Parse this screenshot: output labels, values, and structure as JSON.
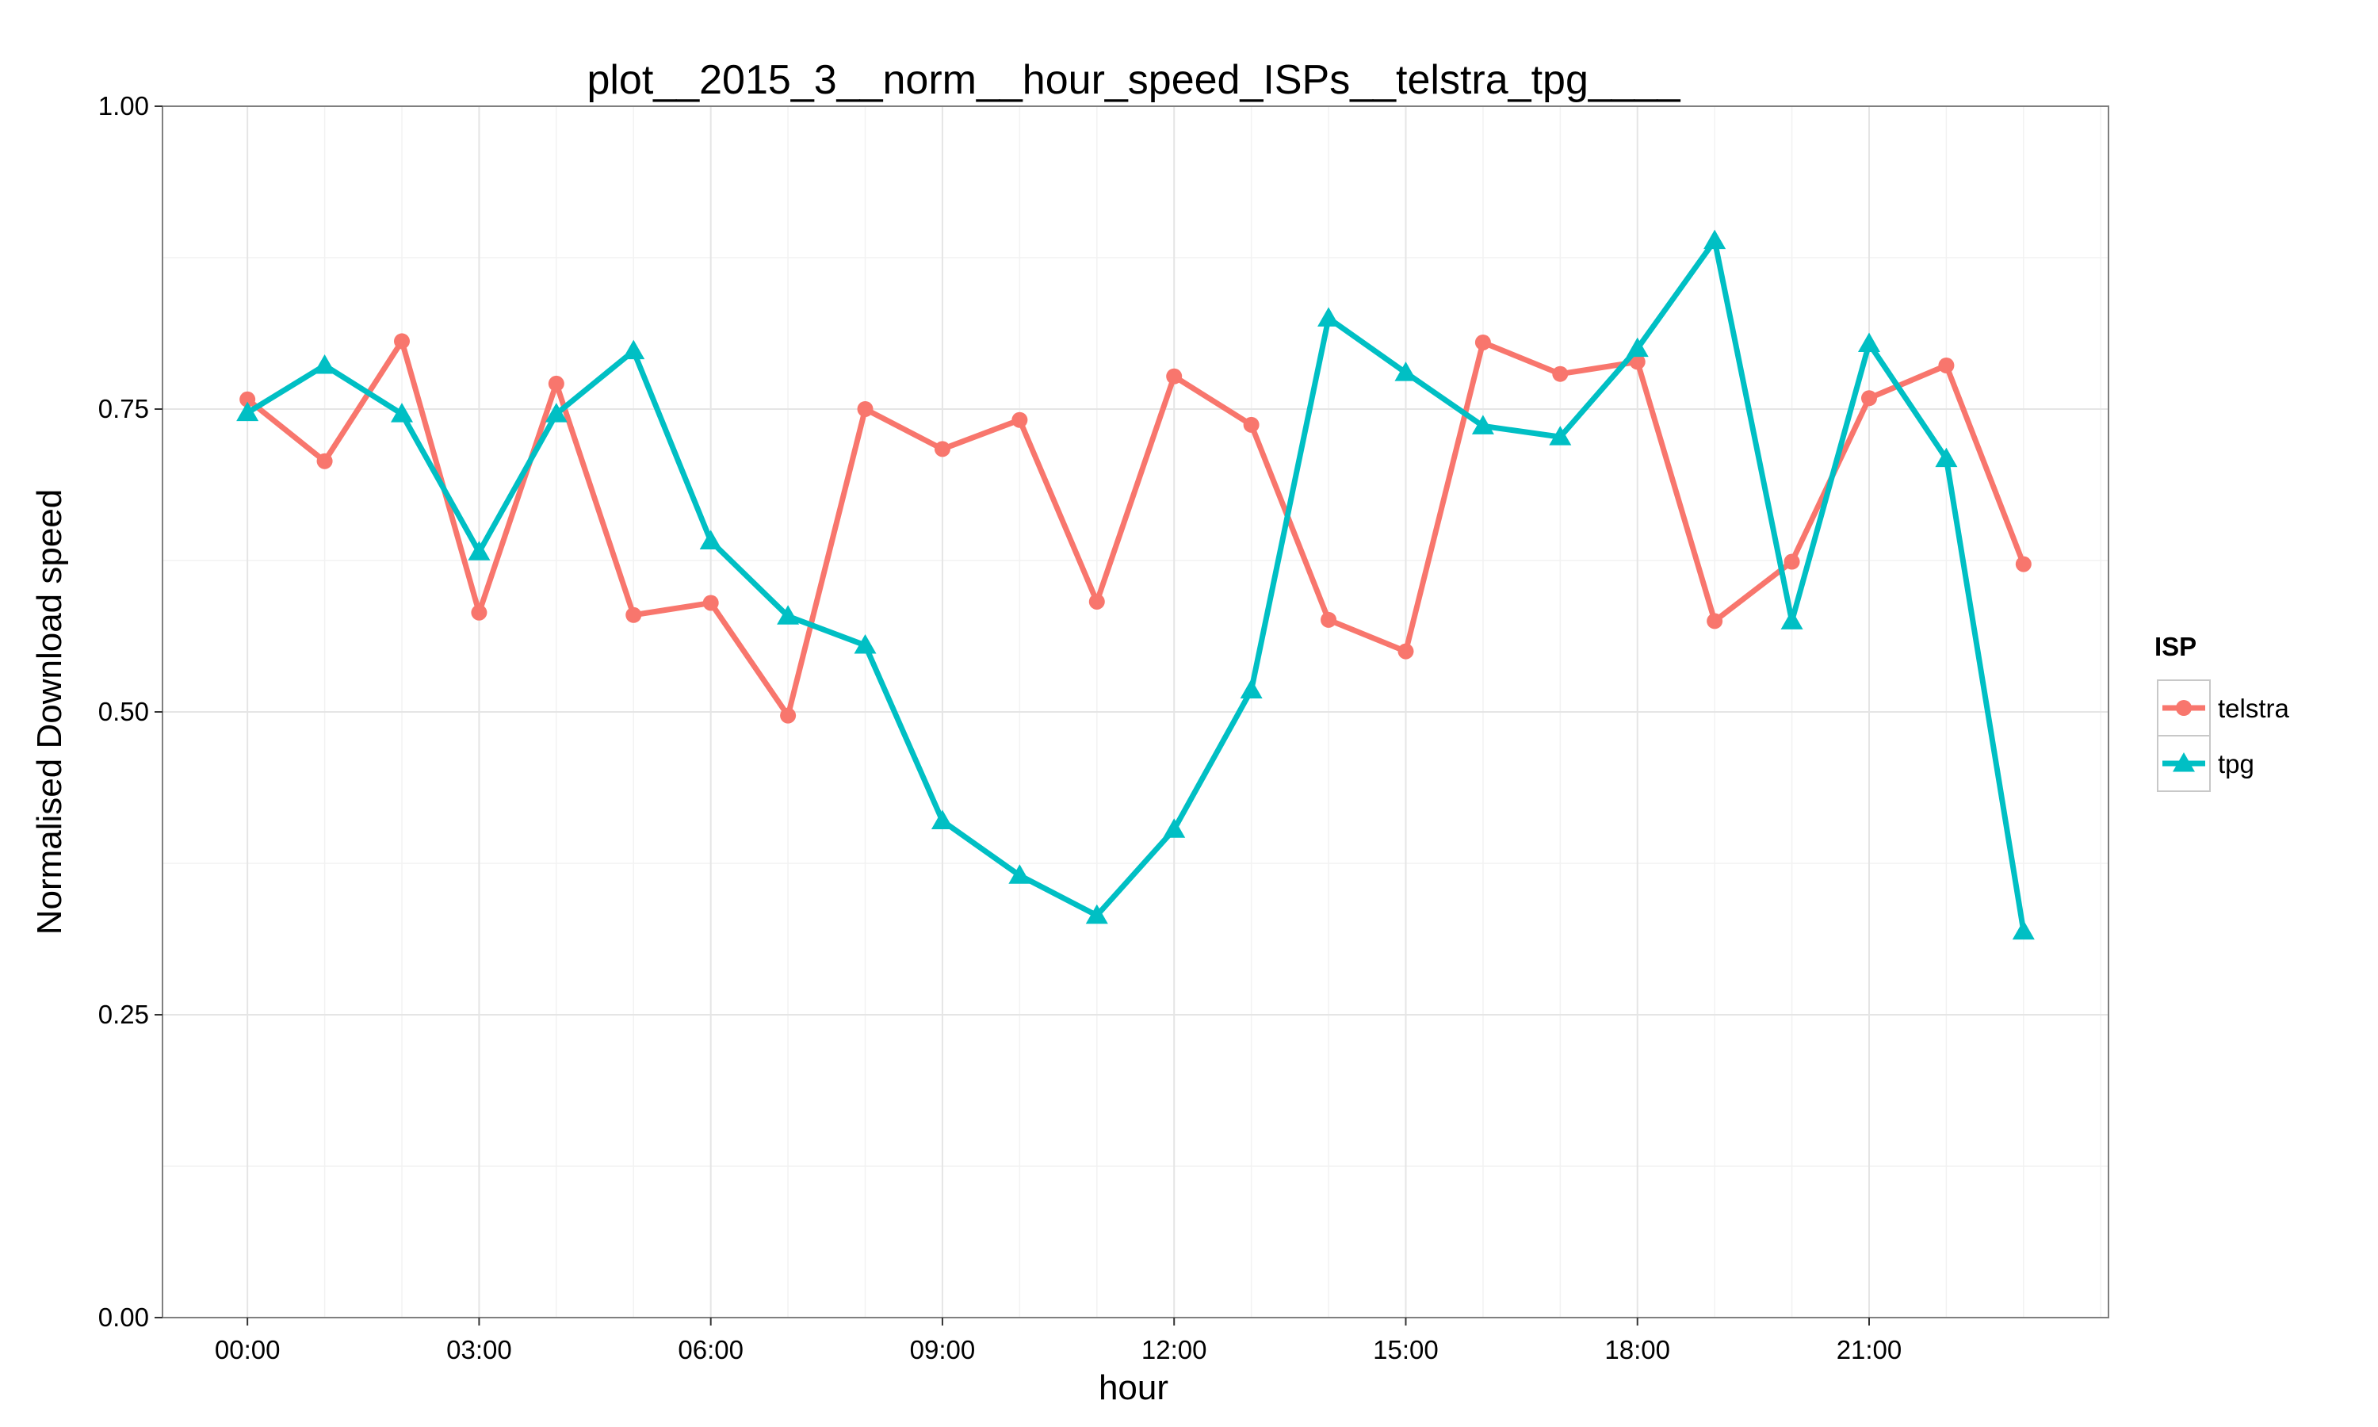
{
  "chart_data": {
    "type": "line",
    "title": "plot__2015_3__norm__hour_speed_ISPs__telstra_tpg____",
    "xlabel": "hour",
    "ylabel": "Normalised Download speed",
    "x": [
      0,
      1,
      2,
      3,
      4,
      5,
      6,
      7,
      8,
      9,
      10,
      11,
      12,
      13,
      14,
      15,
      16,
      17,
      18,
      19,
      20,
      21,
      22,
      23
    ],
    "xlim": [
      -1.1,
      24.1
    ],
    "ylim": [
      0,
      1
    ],
    "x_ticks": [
      0,
      3,
      6,
      9,
      12,
      15,
      18,
      21
    ],
    "x_tick_labels": [
      "00:00",
      "03:00",
      "06:00",
      "09:00",
      "12:00",
      "15:00",
      "18:00",
      "21:00"
    ],
    "y_ticks": [
      0,
      0.25,
      0.5,
      0.75,
      1.0
    ],
    "y_tick_labels": [
      "0.00",
      "0.25",
      "0.50",
      "0.75",
      "1.00"
    ],
    "grid": true,
    "legend": {
      "title": "ISP",
      "position": "right"
    },
    "series": [
      {
        "name": "telstra",
        "color": "#F8766D",
        "marker": "circle",
        "values": [
          0.758,
          0.707,
          0.806,
          0.582,
          0.771,
          0.58,
          0.59,
          0.497,
          0.75,
          0.717,
          0.741,
          0.591,
          0.777,
          0.737,
          0.576,
          0.55,
          0.805,
          0.779,
          0.789,
          0.575,
          0.624,
          0.759,
          0.786,
          0.622
        ]
      },
      {
        "name": "tpg",
        "color": "#00BFC4",
        "marker": "triangle",
        "values": [
          0.747,
          0.786,
          0.746,
          0.632,
          0.746,
          0.798,
          0.641,
          0.579,
          0.555,
          0.41,
          0.365,
          0.332,
          0.403,
          0.518,
          0.825,
          0.78,
          0.736,
          0.727,
          0.8,
          0.889,
          0.575,
          0.804,
          0.709,
          0.319
        ]
      }
    ]
  }
}
